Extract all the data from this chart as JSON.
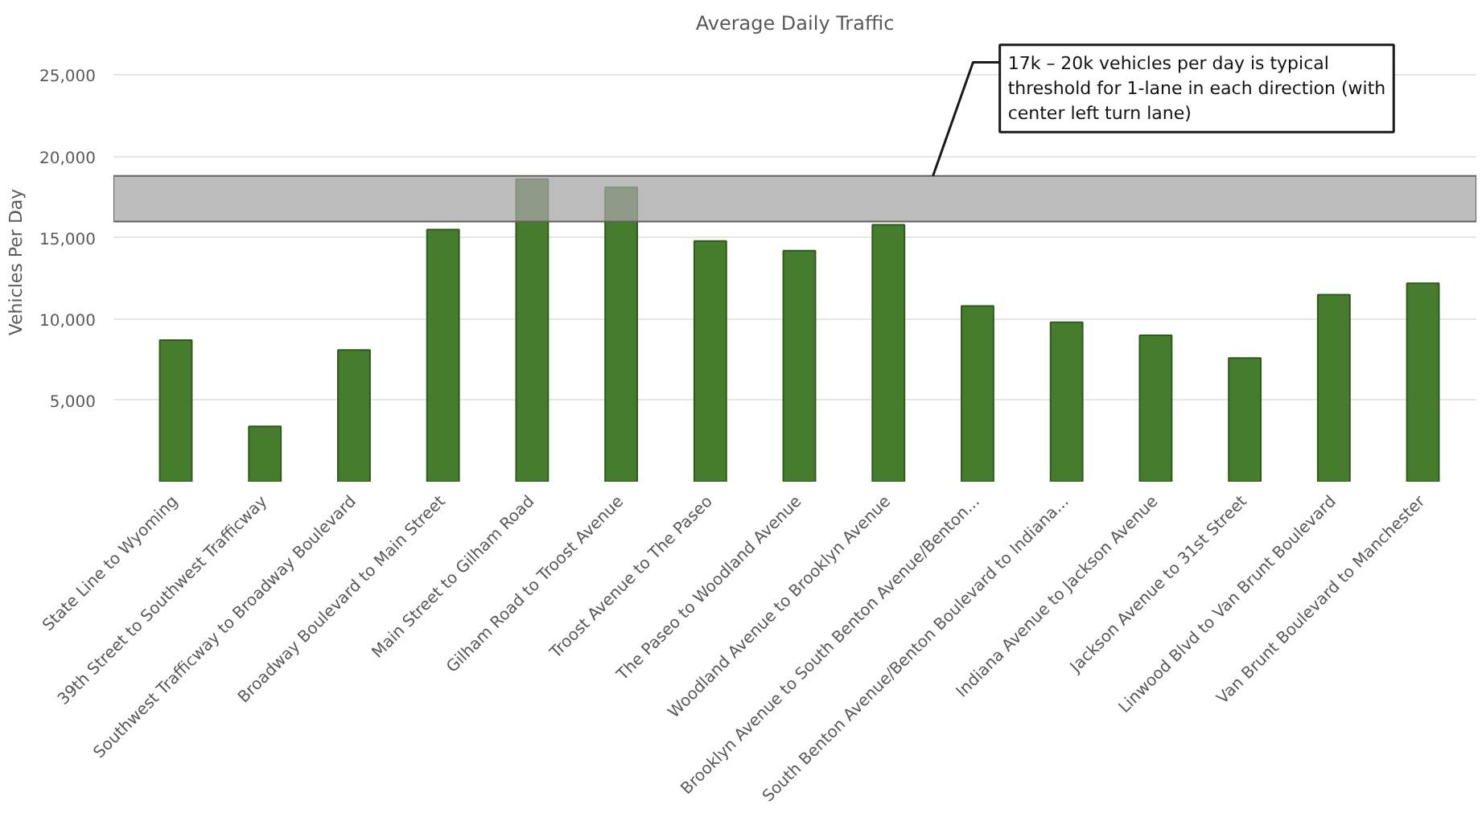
{
  "chart_data": {
    "type": "bar",
    "title": "Average Daily Traffic",
    "ylabel": "Vehicles Per Day",
    "categories": [
      "State Line to Wyoming",
      "39th Street to Southwest Trafficway",
      "Southwest Trafficway to Broadway Boulevard",
      "Broadway Boulevard to Main Street",
      "Main Street to Gilham Road",
      "Gilham Road to Troost Avenue",
      "Troost Avenue to The Paseo",
      "The Paseo to Woodland Avenue",
      "Woodland Avenue to Brooklyn Avenue",
      "Brooklyn Avenue to South Benton Avenue/Benton...",
      "South Benton Avenue/Benton Boulevard to Indiana...",
      "Indiana Avenue to Jackson Avenue",
      "Jackson Avenue to 31st Street",
      "Linwood Blvd to Van Brunt Boulevard",
      "Van Brunt Boulevard to Manchester"
    ],
    "values": [
      8700,
      3400,
      8100,
      15500,
      18600,
      18100,
      14800,
      14200,
      15800,
      10800,
      9800,
      9000,
      7600,
      11500,
      12200
    ],
    "color": "#467d2c",
    "ylim": [
      0,
      27000
    ],
    "yticks": [
      {
        "value": 5000,
        "label": "5,000"
      },
      {
        "value": 10000,
        "label": "10,000"
      },
      {
        "value": 15000,
        "label": "15,000"
      },
      {
        "value": 20000,
        "label": "20,000"
      },
      {
        "value": 25000,
        "label": "25,000"
      }
    ],
    "grid": "y",
    "bands": [
      {
        "axis": "y",
        "from": 16000,
        "to": 18800,
        "label": "17k – 20k vehicles per day is typical threshold for 1-lane in each direction (with center left turn lane)",
        "color": "#a6a6a6"
      }
    ]
  }
}
